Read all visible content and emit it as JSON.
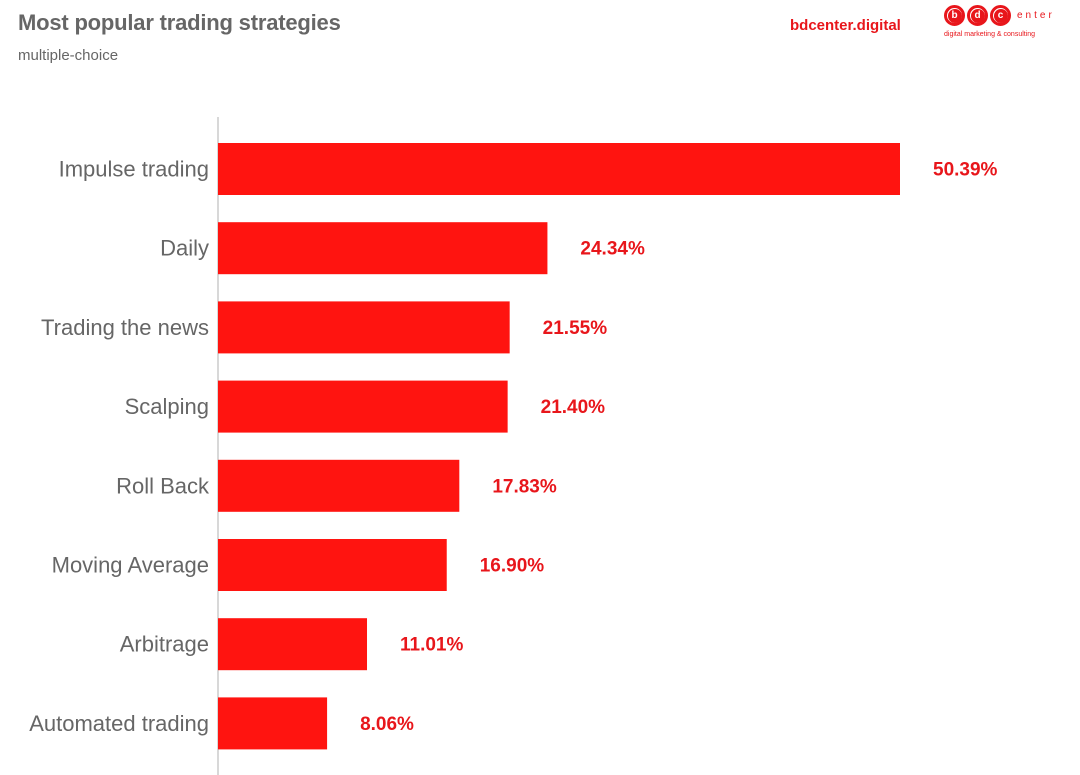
{
  "header": {
    "title": "Most popular trading strategies",
    "subtitle": "multiple-choice",
    "brand_site": "bdcenter.digital"
  },
  "logo": {
    "letters": [
      "b",
      "d",
      "c"
    ],
    "word": "enter",
    "tagline": "digital marketing & consulting"
  },
  "colors": {
    "bar": "#ff1410",
    "value_text": "#e8161b",
    "label_text": "#666666",
    "axis": "#cccccc"
  },
  "chart_data": {
    "type": "bar",
    "orientation": "horizontal",
    "title": "Most popular trading strategies",
    "subtitle": "multiple-choice",
    "categories": [
      "Impulse trading",
      "Daily",
      "Trading the news",
      "Scalping",
      "Roll Back",
      "Moving Average",
      "Arbitrage",
      "Automated trading"
    ],
    "values": [
      50.39,
      24.34,
      21.55,
      21.4,
      17.83,
      16.9,
      11.01,
      8.06
    ],
    "value_labels": [
      "50.39%",
      "24.34%",
      "21.55%",
      "21.40%",
      "17.83%",
      "16.90%",
      "11.01%",
      "8.06%"
    ],
    "xlim": [
      0,
      50.39
    ],
    "grid": false,
    "legend": "none"
  }
}
